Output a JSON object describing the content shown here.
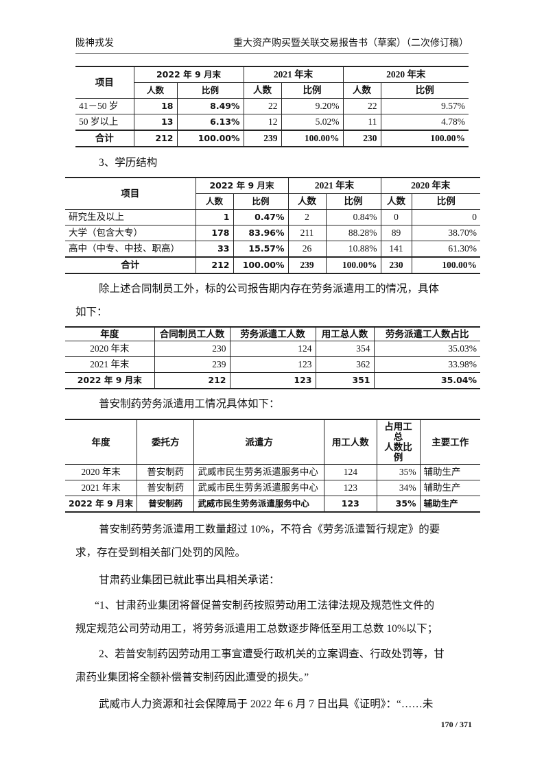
{
  "header": {
    "left": "陇神戎发",
    "right": "重大资产购买暨关联交易报告书（草案）（二次修订稿）"
  },
  "table_age": {
    "head": [
      "项目",
      "2022 年 9 月末",
      "2021 年末",
      "2020 年末"
    ],
    "sub": [
      "人数",
      "比例",
      "人数",
      "比例",
      "人数",
      "比例"
    ],
    "rows": [
      [
        "41－50 岁",
        "18",
        "8.49%",
        "22",
        "9.20%",
        "22",
        "9.57%"
      ],
      [
        "50 岁以上",
        "13",
        "6.13%",
        "12",
        "5.02%",
        "11",
        "4.78%"
      ],
      [
        "合计",
        "212",
        "100.00%",
        "239",
        "100.00%",
        "230",
        "100.00%"
      ]
    ]
  },
  "section_edu": "3、学历结构",
  "table_edu": {
    "head": [
      "项目",
      "2022 年 9 月末",
      "2021 年末",
      "2020 年末"
    ],
    "sub": [
      "人数",
      "比例",
      "人数",
      "比例",
      "人数",
      "比例"
    ],
    "rows": [
      [
        "研究生及以上",
        "1",
        "0.47%",
        "2",
        "0.84%",
        "0",
        "0"
      ],
      [
        "大学（包含大专）",
        "178",
        "83.96%",
        "211",
        "88.28%",
        "89",
        "38.70%"
      ],
      [
        "高中（中专、中技、职高）",
        "33",
        "15.57%",
        "26",
        "10.88%",
        "141",
        "61.30%"
      ],
      [
        "合计",
        "212",
        "100.00%",
        "239",
        "100.00%",
        "230",
        "100.00%"
      ]
    ]
  },
  "para_dispatch_1": "除上述合同制员工外，标的公司报告期内存在劳务派遣用工的情况，具体",
  "para_dispatch_2": "如下：",
  "table_dispatch": {
    "head": [
      "年度",
      "合同制员工人数",
      "劳务派遣工人数",
      "用工总人数",
      "劳务派遣工人数占比"
    ],
    "rows": [
      [
        "2020 年末",
        "230",
        "124",
        "354",
        "35.03%"
      ],
      [
        "2021 年末",
        "239",
        "123",
        "362",
        "33.98%"
      ],
      [
        "2022 年 9 月末",
        "212",
        "123",
        "351",
        "35.04%"
      ]
    ]
  },
  "para_puan": "普安制药劳务派遣用工情况具体如下：",
  "table_puan": {
    "head": [
      "年度",
      "委托方",
      "派遣方",
      "用工人数",
      "占用工总\n人数比例",
      "主要工作"
    ],
    "rows": [
      [
        "2020 年末",
        "普安制药",
        "武威市民生劳务派遣服务中心",
        "124",
        "35%",
        "辅助生产"
      ],
      [
        "2021 年末",
        "普安制药",
        "武威市民生劳务派遣服务中心",
        "123",
        "34%",
        "辅助生产"
      ],
      [
        "2022 年 9 月末",
        "普安制药",
        "武威市民生劳务派遣服务中心",
        "123",
        "35%",
        "辅助生产"
      ]
    ]
  },
  "paras": [
    "普安制药劳务派遣用工数量超过 10%，不符合《劳务派遣暂行规定》的要",
    "求，存在受到相关部门处罚的风险。",
    "甘肃药业集团已就此事出具相关承诺：",
    "“1、甘肃药业集团将督促普安制药按照劳动用工法律法规及规范性文件的",
    "规定规范公司劳动用工，将劳务派遣用工总数逐步降低至用工总数 10%以下；",
    "2、若普安制药因劳动用工事宜遭受行政机关的立案调查、行政处罚等，甘",
    "肃药业集团将全额补偿普安制药因此遭受的损失。”",
    "武威市人力资源和社会保障局于 2022 年 6 月 7 日出具《证明》：“……未"
  ],
  "page_number": "170 / 371"
}
